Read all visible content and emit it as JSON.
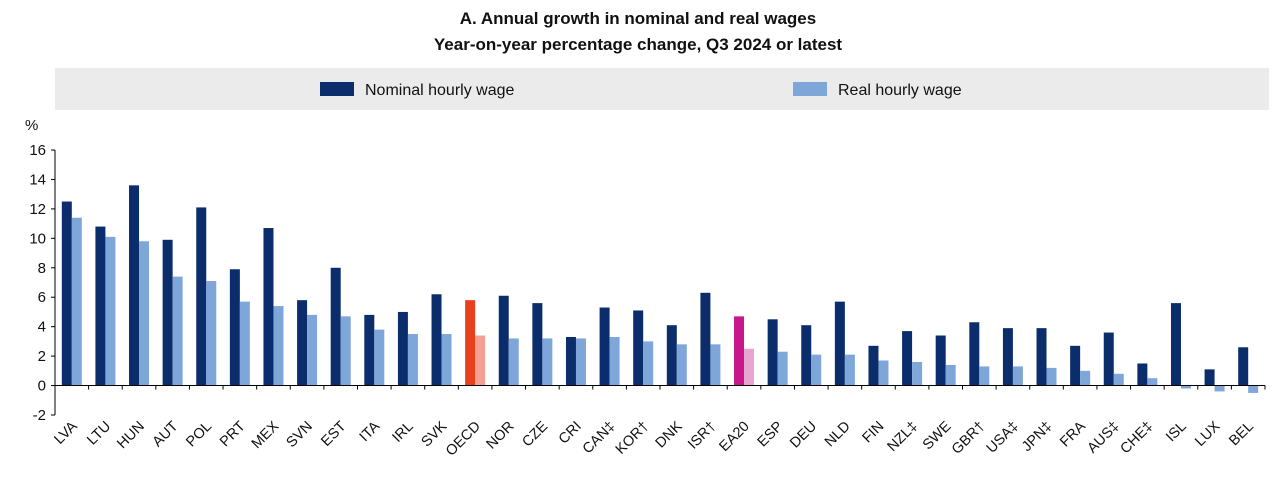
{
  "chart_data": {
    "type": "bar",
    "title": "A. Annual growth in nominal and real wages",
    "subtitle": "Year-on-year percentage change, Q3 2024 or latest",
    "ylabel": "%",
    "ylim": [
      -2,
      16
    ],
    "yticks": [
      -2,
      0,
      2,
      4,
      6,
      8,
      10,
      12,
      14,
      16
    ],
    "legend_position": "top",
    "categories": [
      "LVA",
      "LTU",
      "HUN",
      "AUT",
      "POL",
      "PRT",
      "MEX",
      "SVN",
      "EST",
      "ITA",
      "IRL",
      "SVK",
      "OECD",
      "NOR",
      "CZE",
      "CRI",
      "CAN‡",
      "KOR†",
      "DNK",
      "ISR†",
      "EA20",
      "ESP",
      "DEU",
      "NLD",
      "FIN",
      "NZL‡",
      "SWE",
      "GBR†",
      "USA‡",
      "JPN‡",
      "FRA",
      "AUS‡",
      "CHE‡",
      "ISL",
      "LUX",
      "BEL"
    ],
    "series": [
      {
        "name": "Nominal hourly wage",
        "color": "#0c2d6b",
        "values": [
          12.5,
          10.8,
          13.6,
          9.9,
          12.1,
          7.9,
          10.7,
          5.8,
          8.0,
          4.8,
          5.0,
          6.2,
          5.8,
          6.1,
          5.6,
          3.3,
          5.3,
          5.1,
          4.1,
          6.3,
          4.7,
          4.5,
          4.1,
          5.7,
          2.7,
          3.7,
          3.4,
          4.3,
          3.9,
          3.9,
          2.7,
          3.6,
          1.5,
          5.6,
          1.1,
          2.6
        ]
      },
      {
        "name": "Real hourly wage",
        "color": "#7fa6d9",
        "values": [
          11.4,
          10.1,
          9.8,
          7.4,
          7.1,
          5.7,
          5.4,
          4.8,
          4.7,
          3.8,
          3.5,
          3.5,
          3.4,
          3.2,
          3.2,
          3.2,
          3.3,
          3.0,
          2.8,
          2.8,
          2.5,
          2.3,
          2.1,
          2.1,
          1.7,
          1.6,
          1.4,
          1.3,
          1.3,
          1.2,
          1.0,
          0.8,
          0.5,
          -0.2,
          -0.4,
          -0.5
        ]
      }
    ],
    "highlights": [
      {
        "category": "OECD",
        "nominal_color": "#e8401c",
        "real_color": "#f4a093"
      },
      {
        "category": "EA20",
        "nominal_color": "#c8178a",
        "real_color": "#e8a5cf"
      }
    ],
    "grid": false
  }
}
